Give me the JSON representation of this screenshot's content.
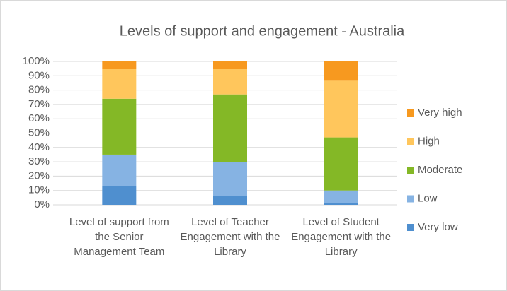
{
  "chart_data": {
    "type": "stacked_bar",
    "title": "Levels of support and engagement - Australia",
    "categories": [
      "Level of support from the Senior Management Team",
      "Level of Teacher Engagement with the Library",
      "Level of Student Engagement with the Library"
    ],
    "series": [
      {
        "name": "Very low",
        "color": "#4f8fcf",
        "values": [
          13,
          6,
          1
        ]
      },
      {
        "name": "Low",
        "color": "#86b3e3",
        "values": [
          22,
          24,
          9
        ]
      },
      {
        "name": "Moderate",
        "color": "#84b826",
        "values": [
          39,
          47,
          37
        ]
      },
      {
        "name": "High",
        "color": "#ffc65c",
        "values": [
          21,
          18,
          40
        ]
      },
      {
        "name": "Very high",
        "color": "#f7991f",
        "values": [
          5,
          5,
          13
        ]
      }
    ],
    "ylim": [
      0,
      100
    ],
    "yticks": [
      {
        "value": 0,
        "label": "0%"
      },
      {
        "value": 10,
        "label": "10%"
      },
      {
        "value": 20,
        "label": "20%"
      },
      {
        "value": 30,
        "label": "30%"
      },
      {
        "value": 40,
        "label": "40%"
      },
      {
        "value": 50,
        "label": "50%"
      },
      {
        "value": 60,
        "label": "60%"
      },
      {
        "value": 70,
        "label": "70%"
      },
      {
        "value": 80,
        "label": "80%"
      },
      {
        "value": 90,
        "label": "90%"
      },
      {
        "value": 100,
        "label": "100%"
      }
    ],
    "grid": true,
    "legend": "right"
  }
}
